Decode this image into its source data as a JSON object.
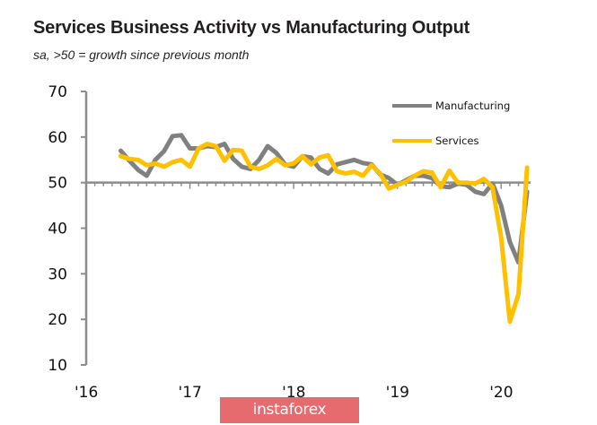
{
  "chart_data": {
    "type": "line",
    "title": "Services Business Activity vs Manufacturing Output",
    "subtitle": "sa, >50 = growth since previous month",
    "xlabel": "",
    "ylabel": "",
    "ylim": [
      10,
      70
    ],
    "yticks": [
      70,
      60,
      50,
      40,
      30,
      20,
      10
    ],
    "xtick_labels": [
      "'16",
      "'17",
      "'18",
      "'19",
      "'20"
    ],
    "x_start": "2016-05",
    "x_unit": "monthly",
    "reference_line": 50,
    "grid": false,
    "legend_position": "top-right",
    "series": [
      {
        "name": "Manufacturing",
        "color": "#808080",
        "values": [
          57.0,
          54.8,
          52.8,
          51.5,
          55.0,
          56.9,
          60.2,
          60.4,
          57.5,
          57.5,
          58.0,
          57.8,
          58.5,
          55.2,
          53.5,
          53.0,
          55.0,
          58.0,
          56.5,
          54.0,
          53.5,
          55.8,
          55.5,
          53.0,
          52.0,
          54.0,
          54.5,
          55.0,
          54.3,
          54.0,
          51.8,
          51.0,
          49.5,
          50.5,
          51.5,
          51.5,
          51.0,
          49.2,
          49.0,
          49.8,
          49.5,
          48.0,
          47.5,
          49.8,
          45.0,
          37.0,
          32.5,
          48.0
        ]
      },
      {
        "name": "Services",
        "color": "#ffc000",
        "values": [
          55.8,
          55.2,
          55.0,
          53.8,
          54.2,
          53.5,
          54.5,
          55.0,
          53.5,
          57.5,
          58.5,
          58.0,
          54.8,
          57.2,
          57.0,
          53.5,
          53.0,
          53.8,
          55.2,
          53.8,
          54.2,
          55.8,
          54.0,
          55.5,
          56.0,
          52.5,
          52.0,
          52.4,
          51.5,
          53.8,
          52.0,
          48.7,
          49.5,
          50.2,
          51.5,
          52.5,
          52.2,
          49.0,
          52.6,
          50.0,
          50.0,
          49.8,
          50.8,
          49.0,
          38.0,
          19.5,
          25.5,
          53.3
        ]
      }
    ]
  },
  "watermark": "instaforex"
}
